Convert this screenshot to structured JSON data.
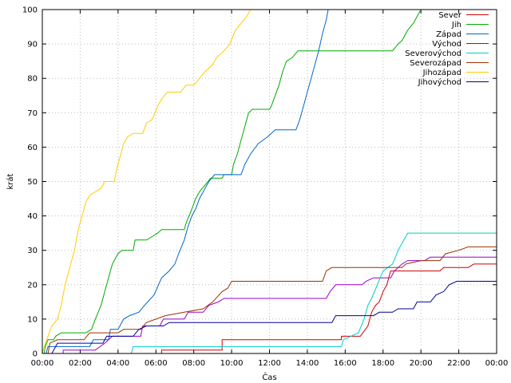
{
  "chart_data": {
    "type": "line",
    "xlabel": "Čas",
    "ylabel": "krát",
    "x_ticks": [
      "00:00",
      "02:00",
      "04:00",
      "06:00",
      "08:00",
      "10:00",
      "12:00",
      "14:00",
      "16:00",
      "18:00",
      "20:00",
      "22:00",
      "00:00"
    ],
    "y_ticks": [
      "0",
      "10",
      "20",
      "30",
      "40",
      "50",
      "60",
      "70",
      "80",
      "90",
      "100"
    ],
    "x_range_hours": [
      0,
      24
    ],
    "ylim": [
      0,
      100
    ],
    "grid": true,
    "legend_position": "top-right",
    "series": [
      {
        "name": "Sever",
        "color": "#cc0000",
        "points": [
          [
            6.3,
            0
          ],
          [
            6.3,
            1
          ],
          [
            9.5,
            1
          ],
          [
            9.5,
            4
          ],
          [
            15.8,
            4
          ],
          [
            15.8,
            5
          ],
          [
            16.8,
            5
          ],
          [
            17.2,
            8
          ],
          [
            17.4,
            12
          ],
          [
            17.6,
            14
          ],
          [
            17.8,
            15
          ],
          [
            18.0,
            18
          ],
          [
            18.2,
            20
          ],
          [
            18.4,
            24
          ],
          [
            21,
            24
          ],
          [
            21.2,
            25
          ],
          [
            22.5,
            25
          ],
          [
            22.8,
            26
          ],
          [
            24,
            26
          ]
        ]
      },
      {
        "name": "Jih",
        "color": "#00aa00",
        "points": [
          [
            0.1,
            0
          ],
          [
            0.15,
            2
          ],
          [
            0.3,
            4
          ],
          [
            0.6,
            4
          ],
          [
            0.7,
            5
          ],
          [
            1.0,
            6
          ],
          [
            2.3,
            6
          ],
          [
            2.6,
            7
          ],
          [
            2.8,
            10
          ],
          [
            3.1,
            14
          ],
          [
            3.4,
            20
          ],
          [
            3.7,
            26
          ],
          [
            4,
            29
          ],
          [
            4.2,
            30
          ],
          [
            4.8,
            30
          ],
          [
            4.9,
            33
          ],
          [
            5.5,
            33
          ],
          [
            5.8,
            34
          ],
          [
            6.1,
            35
          ],
          [
            6.1,
            35
          ],
          [
            6.3,
            36
          ],
          [
            7.5,
            36
          ],
          [
            7.6,
            38
          ],
          [
            7.9,
            42
          ],
          [
            8.1,
            45
          ],
          [
            8.3,
            47
          ],
          [
            8.6,
            49
          ],
          [
            8.9,
            51
          ],
          [
            9.5,
            51
          ],
          [
            9.6,
            52
          ],
          [
            10.0,
            52
          ],
          [
            10.1,
            55
          ],
          [
            10.3,
            58
          ],
          [
            10.5,
            62
          ],
          [
            10.7,
            66
          ],
          [
            10.9,
            70
          ],
          [
            11.1,
            71
          ],
          [
            12.0,
            71
          ],
          [
            12.1,
            72
          ],
          [
            12.3,
            75
          ],
          [
            12.5,
            78
          ],
          [
            12.7,
            82
          ],
          [
            12.9,
            85
          ],
          [
            13.2,
            86
          ],
          [
            13.5,
            88
          ],
          [
            15.5,
            88
          ],
          [
            16,
            88
          ],
          [
            18.5,
            88
          ],
          [
            18.8,
            90
          ],
          [
            19.0,
            91
          ],
          [
            19.3,
            94
          ],
          [
            19.6,
            96
          ],
          [
            19.9,
            99
          ],
          [
            20.0,
            100
          ]
        ]
      },
      {
        "name": "Západ",
        "color": "#0066cc",
        "points": [
          [
            0.2,
            0
          ],
          [
            0.3,
            2
          ],
          [
            1.0,
            2
          ],
          [
            2.5,
            2
          ],
          [
            2.7,
            4
          ],
          [
            3.5,
            4
          ],
          [
            3.6,
            7
          ],
          [
            4.0,
            7
          ],
          [
            4.3,
            10
          ],
          [
            4.6,
            11
          ],
          [
            5.1,
            12
          ],
          [
            5.4,
            14
          ],
          [
            5.9,
            17
          ],
          [
            6.3,
            22
          ],
          [
            6.7,
            24
          ],
          [
            7.0,
            26
          ],
          [
            7.2,
            29
          ],
          [
            7.5,
            33
          ],
          [
            7.7,
            37
          ],
          [
            7.9,
            40
          ],
          [
            8.1,
            42
          ],
          [
            8.3,
            45
          ],
          [
            8.5,
            47
          ],
          [
            8.8,
            50
          ],
          [
            9.1,
            52
          ],
          [
            10.5,
            52
          ],
          [
            10.7,
            55
          ],
          [
            11.0,
            58
          ],
          [
            11.4,
            61
          ],
          [
            11.9,
            63
          ],
          [
            12.3,
            65
          ],
          [
            13.4,
            65
          ],
          [
            13.6,
            68
          ],
          [
            13.8,
            72
          ],
          [
            14.0,
            76
          ],
          [
            14.2,
            80
          ],
          [
            14.4,
            84
          ],
          [
            14.6,
            88
          ],
          [
            14.8,
            93
          ],
          [
            15.0,
            97
          ],
          [
            15.1,
            100
          ]
        ]
      },
      {
        "name": "Východ",
        "color": "#9900cc",
        "points": [
          [
            1.1,
            0
          ],
          [
            1.1,
            1
          ],
          [
            2.8,
            1
          ],
          [
            3.3,
            3
          ],
          [
            3.7,
            5
          ],
          [
            5.2,
            5
          ],
          [
            5.3,
            8
          ],
          [
            6.2,
            8
          ],
          [
            6.4,
            10
          ],
          [
            7.5,
            10
          ],
          [
            7.7,
            12
          ],
          [
            8.5,
            12
          ],
          [
            8.8,
            14
          ],
          [
            9.3,
            15
          ],
          [
            9.6,
            16
          ],
          [
            15.0,
            16
          ],
          [
            15.2,
            18
          ],
          [
            15.5,
            20
          ],
          [
            16.9,
            20
          ],
          [
            17.1,
            21
          ],
          [
            17.5,
            22
          ],
          [
            18.4,
            22
          ],
          [
            18.6,
            24
          ],
          [
            19.0,
            26
          ],
          [
            19.3,
            27
          ],
          [
            20.2,
            27
          ],
          [
            20.5,
            28
          ],
          [
            24,
            28
          ]
        ]
      },
      {
        "name": "Severovýchod",
        "color": "#00cccc",
        "points": [
          [
            4.7,
            0
          ],
          [
            4.8,
            2
          ],
          [
            15.8,
            2
          ],
          [
            15.9,
            4
          ],
          [
            16.3,
            5
          ],
          [
            16.7,
            6
          ],
          [
            17.0,
            10
          ],
          [
            17.2,
            14
          ],
          [
            17.4,
            16
          ],
          [
            17.7,
            20
          ],
          [
            18.0,
            24
          ],
          [
            18.5,
            26
          ],
          [
            18.8,
            30
          ],
          [
            19.1,
            33
          ],
          [
            19.3,
            35
          ],
          [
            24,
            35
          ]
        ]
      },
      {
        "name": "Severozápad",
        "color": "#993300",
        "points": [
          [
            0.3,
            0
          ],
          [
            0.4,
            3
          ],
          [
            0.8,
            4
          ],
          [
            2.2,
            4
          ],
          [
            2.5,
            6
          ],
          [
            4.0,
            6
          ],
          [
            4.3,
            7
          ],
          [
            5.2,
            7
          ],
          [
            5.5,
            9
          ],
          [
            6.5,
            11
          ],
          [
            7.5,
            12
          ],
          [
            8.5,
            13
          ],
          [
            9.0,
            15
          ],
          [
            9.5,
            18
          ],
          [
            9.8,
            19
          ],
          [
            10.0,
            21
          ],
          [
            14.8,
            21
          ],
          [
            15.0,
            24
          ],
          [
            15.3,
            25
          ],
          [
            19.0,
            25
          ],
          [
            19.2,
            26
          ],
          [
            20.0,
            27
          ],
          [
            21.0,
            27
          ],
          [
            21.3,
            29
          ],
          [
            22.0,
            30
          ],
          [
            22.5,
            31
          ],
          [
            24,
            31
          ]
        ]
      },
      {
        "name": "Jihozápad",
        "color": "#ffcc00",
        "points": [
          [
            0,
            0
          ],
          [
            0.1,
            2
          ],
          [
            0.3,
            5
          ],
          [
            0.5,
            8
          ],
          [
            0.8,
            10
          ],
          [
            1.0,
            14
          ],
          [
            1.2,
            20
          ],
          [
            1.5,
            26
          ],
          [
            1.7,
            30
          ],
          [
            1.9,
            36
          ],
          [
            2.1,
            40
          ],
          [
            2.3,
            44
          ],
          [
            2.5,
            46
          ],
          [
            2.8,
            47
          ],
          [
            3.1,
            48
          ],
          [
            3.3,
            50
          ],
          [
            3.8,
            50
          ],
          [
            3.9,
            53
          ],
          [
            4.1,
            57
          ],
          [
            4.3,
            61
          ],
          [
            4.5,
            63
          ],
          [
            4.8,
            64
          ],
          [
            5.3,
            64
          ],
          [
            5.5,
            67
          ],
          [
            5.8,
            68
          ],
          [
            6.1,
            72
          ],
          [
            6.3,
            74
          ],
          [
            6.6,
            76
          ],
          [
            7.3,
            76
          ],
          [
            7.6,
            78
          ],
          [
            8.0,
            78
          ],
          [
            8.3,
            80
          ],
          [
            8.6,
            82
          ],
          [
            9.0,
            84
          ],
          [
            9.2,
            86
          ],
          [
            9.6,
            88
          ],
          [
            9.9,
            90
          ],
          [
            10.2,
            94
          ],
          [
            10.5,
            96
          ],
          [
            10.8,
            98
          ],
          [
            11.0,
            100
          ]
        ]
      },
      {
        "name": "Jihovýchod",
        "color": "#000099",
        "points": [
          [
            0.5,
            0
          ],
          [
            0.8,
            3
          ],
          [
            1.2,
            3
          ],
          [
            3.2,
            3
          ],
          [
            3.4,
            5
          ],
          [
            4.8,
            5
          ],
          [
            5.1,
            7
          ],
          [
            5.5,
            8
          ],
          [
            6.4,
            8
          ],
          [
            6.7,
            9
          ],
          [
            15.3,
            9
          ],
          [
            15.5,
            11
          ],
          [
            17.5,
            11
          ],
          [
            17.8,
            12
          ],
          [
            18.5,
            12
          ],
          [
            18.8,
            13
          ],
          [
            19.6,
            13
          ],
          [
            19.8,
            15
          ],
          [
            20.5,
            15
          ],
          [
            20.8,
            17
          ],
          [
            21.2,
            18
          ],
          [
            21.5,
            20
          ],
          [
            21.9,
            21
          ],
          [
            24,
            21
          ]
        ]
      }
    ]
  }
}
